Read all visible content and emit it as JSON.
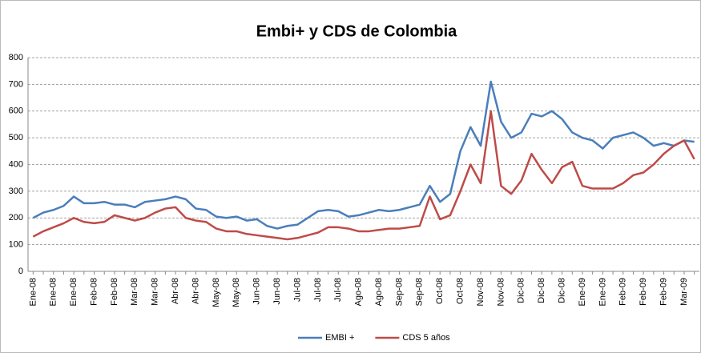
{
  "chart_data": {
    "type": "line",
    "title": "Embi+ y CDS de Colombia",
    "categories": [
      "Ene-08",
      null,
      "Ene-08",
      null,
      "Ene-08",
      null,
      "Feb-08",
      null,
      "Feb-08",
      null,
      "Mar-08",
      null,
      "Mar-08",
      null,
      "Abr-08",
      null,
      "Abr-08",
      null,
      "May-08",
      null,
      "May-08",
      null,
      "Jun-08",
      null,
      "Jun-08",
      null,
      "Jul-08",
      null,
      "Jul-08",
      null,
      "Jul-08",
      null,
      "Ago-08",
      null,
      "Ago-08",
      null,
      "Sep-08",
      null,
      "Sep-08",
      null,
      "Oct-08",
      null,
      "Oct-08",
      null,
      "Nov-08",
      null,
      "Nov-08",
      null,
      "Dic-08",
      null,
      "Dic-08",
      null,
      "Dic-08",
      null,
      "Ene-09",
      null,
      "Ene-09",
      null,
      "Feb-09",
      null,
      "Feb-09",
      null,
      "Feb-09",
      null,
      "Mar-09",
      null
    ],
    "series": [
      {
        "name": "EMBI +",
        "color": "#4a7ebb",
        "values": [
          200,
          220,
          230,
          245,
          280,
          255,
          255,
          260,
          250,
          250,
          240,
          260,
          265,
          270,
          280,
          270,
          235,
          230,
          205,
          200,
          205,
          190,
          195,
          170,
          160,
          170,
          175,
          200,
          225,
          230,
          225,
          205,
          210,
          220,
          230,
          225,
          230,
          240,
          250,
          320,
          260,
          290,
          450,
          540,
          470,
          710,
          560,
          500,
          520,
          590,
          580,
          600,
          570,
          520,
          500,
          490,
          460,
          500,
          510,
          520,
          500,
          470,
          480,
          470,
          490,
          485
        ]
      },
      {
        "name": "CDS 5 años",
        "color": "#be4b48",
        "values": [
          130,
          150,
          165,
          180,
          200,
          185,
          180,
          185,
          210,
          200,
          190,
          200,
          220,
          235,
          240,
          200,
          190,
          185,
          160,
          150,
          150,
          140,
          135,
          130,
          125,
          120,
          125,
          135,
          145,
          165,
          165,
          160,
          150,
          150,
          155,
          160,
          160,
          165,
          170,
          280,
          195,
          210,
          300,
          400,
          330,
          600,
          320,
          290,
          340,
          440,
          380,
          330,
          390,
          410,
          320,
          310,
          310,
          310,
          330,
          360,
          370,
          400,
          440,
          470,
          490,
          420
        ]
      }
    ],
    "ylim": [
      0,
      800
    ],
    "yticks": [
      0,
      100,
      200,
      300,
      400,
      500,
      600,
      700,
      800
    ],
    "grid": true,
    "legend": "bottom"
  }
}
